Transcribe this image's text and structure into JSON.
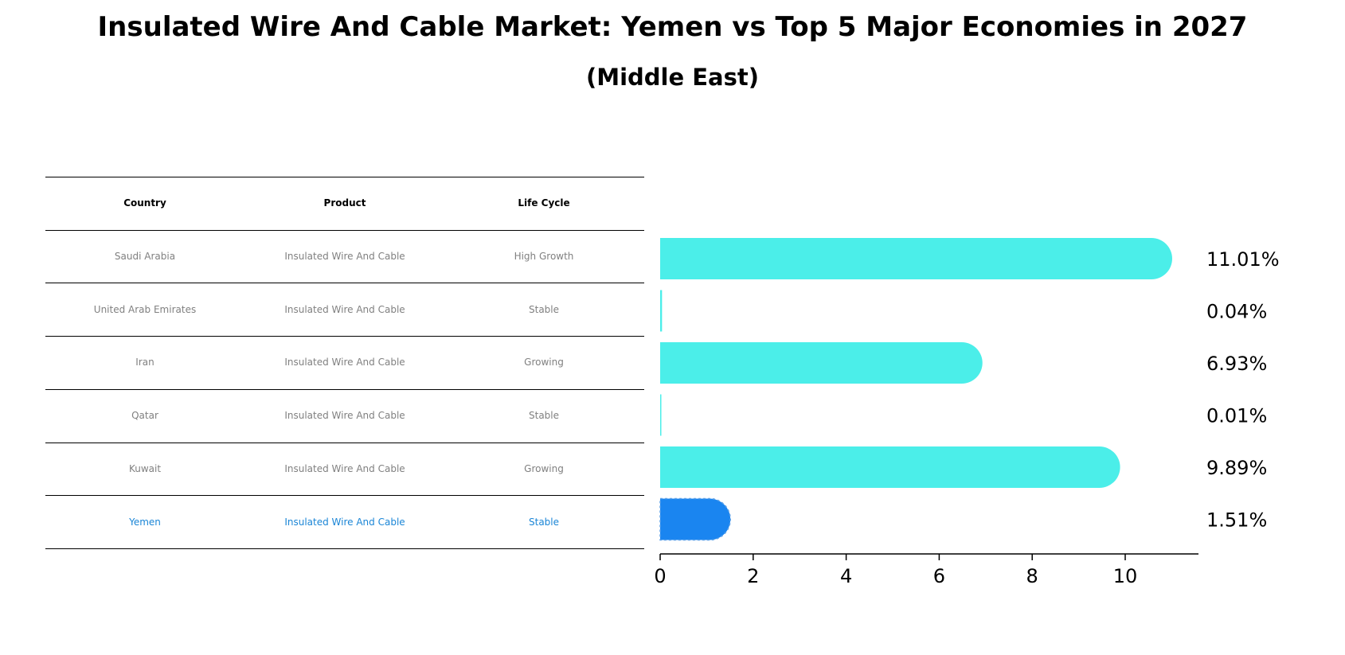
{
  "title": "Insulated Wire And Cable Market: Yemen vs Top 5 Major Economies in 2027",
  "subtitle": "(Middle East)",
  "table": {
    "headers": [
      "Country",
      "Product",
      "Life Cycle"
    ],
    "rows": [
      [
        "Saudi Arabia",
        "Insulated Wire And Cable",
        "High Growth"
      ],
      [
        "United Arab Emirates",
        "Insulated Wire And Cable",
        "Stable"
      ],
      [
        "Iran",
        "Insulated Wire And Cable",
        "Growing"
      ],
      [
        "Qatar",
        "Insulated Wire And Cable",
        "Stable"
      ],
      [
        "Kuwait",
        "Insulated Wire And Cable",
        "Growing"
      ],
      [
        "Yemen",
        "Insulated Wire And Cable",
        "Stable"
      ]
    ],
    "highlight_row": "Yemen"
  },
  "chart_data": {
    "type": "bar",
    "orientation": "horizontal",
    "categories": [
      "Saudi Arabia",
      "United Arab Emirates",
      "Iran",
      "Qatar",
      "Kuwait",
      "Yemen"
    ],
    "values": [
      11.01,
      0.04,
      6.93,
      0.01,
      9.89,
      1.51
    ],
    "value_labels": [
      "11.01%",
      "0.04%",
      "6.93%",
      "0.01%",
      "9.89%",
      "1.51%"
    ],
    "xlim": [
      0,
      11.5
    ],
    "xticks": [
      0,
      2,
      4,
      6,
      8,
      10
    ],
    "grid": false,
    "colors": {
      "default": "#4beee9",
      "highlight": "#1a85f0"
    }
  }
}
